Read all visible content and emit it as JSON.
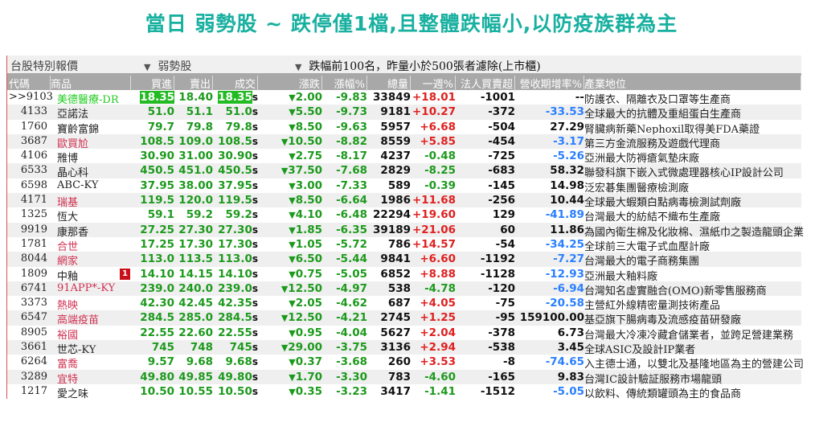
{
  "title": "當日 弱勢股 ~ 跌停僅1檔,且整體跌幅小,以防疫族群為主",
  "bar": {
    "label": "台股特別報價",
    "group": "弱勢股",
    "filter": "跌幅前100名，昨量小於500張者濾除(上市櫃)"
  },
  "headers": [
    "代碼",
    "商品",
    "買進",
    "賣出",
    "成交",
    "漲跌",
    "漲幅%",
    "總量",
    "一週%",
    "法人買賣超",
    "營收期增率%",
    "產業地位"
  ],
  "colors": {
    "down": "#1d9a1d",
    "up": "#e02020",
    "neg_revenue": "#2a7fff",
    "name_red": "#d03050"
  },
  "rows": [
    {
      "code": ">>9103",
      "name": "美德醫療-DR",
      "name_color": "green",
      "bid": "18.35",
      "ask": "18.40",
      "last": "18.35",
      "chg": "2.00",
      "pct": "-9.83",
      "vol": "33849",
      "week": "+18.01",
      "inst": "-1001",
      "rev": "--",
      "ind": "防護衣、隔離衣及口罩等生產商",
      "selected": true
    },
    {
      "code": "4133",
      "name": "亞諾法",
      "name_color": "black",
      "bid": "51.0",
      "ask": "51.1",
      "last": "51.0",
      "chg": "5.50",
      "pct": "-9.73",
      "vol": "9181",
      "week": "+10.27",
      "inst": "-372",
      "rev": "-33.53",
      "ind": "全球最大的抗體及重組蛋白生產商"
    },
    {
      "code": "1760",
      "name": "寶齡富錦",
      "name_color": "black",
      "bid": "79.7",
      "ask": "79.8",
      "last": "79.8",
      "chg": "8.50",
      "pct": "-9.63",
      "vol": "5957",
      "week": "+6.68",
      "inst": "-504",
      "rev": "27.29",
      "ind": "腎臟病新藥Nephoxil取得美FDA藥證"
    },
    {
      "code": "3687",
      "name": "歐買尬",
      "name_color": "red",
      "bid": "108.5",
      "ask": "109.0",
      "last": "108.5",
      "chg": "10.50",
      "pct": "-8.82",
      "vol": "8559",
      "week": "+5.85",
      "inst": "-454",
      "rev": "-3.17",
      "ind": "第三方金流服務及遊戲代理商"
    },
    {
      "code": "4106",
      "name": "雃博",
      "name_color": "black",
      "bid": "30.90",
      "ask": "31.00",
      "last": "30.90",
      "chg": "2.75",
      "pct": "-8.17",
      "vol": "4237",
      "week": "-0.48",
      "inst": "-725",
      "rev": "-5.26",
      "ind": "亞洲最大防褥瘡氣墊床廠"
    },
    {
      "code": "6533",
      "name": "晶心科",
      "name_color": "black",
      "bid": "450.5",
      "ask": "451.0",
      "last": "450.5",
      "chg": "37.50",
      "pct": "-7.68",
      "vol": "2829",
      "week": "-8.25",
      "inst": "-683",
      "rev": "58.32",
      "ind": "聯發科旗下嵌入式微處理器核心IP設計公司"
    },
    {
      "code": "6598",
      "name": "ABC-KY",
      "name_color": "black",
      "bid": "37.95",
      "ask": "38.00",
      "last": "37.95",
      "chg": "3.00",
      "pct": "-7.33",
      "vol": "589",
      "week": "-0.39",
      "inst": "-145",
      "rev": "14.98",
      "ind": "泛宏碁集團醫療檢測廠"
    },
    {
      "code": "4171",
      "name": "瑞基",
      "name_color": "red",
      "bid": "119.5",
      "ask": "120.0",
      "last": "119.5",
      "chg": "8.50",
      "pct": "-6.64",
      "vol": "1986",
      "week": "+11.68",
      "inst": "-256",
      "rev": "10.44",
      "ind": "全球最大蝦類白點病毒檢測試劑廠"
    },
    {
      "code": "1325",
      "name": "恆大",
      "name_color": "black",
      "bid": "59.1",
      "ask": "59.2",
      "last": "59.2",
      "chg": "4.10",
      "pct": "-6.48",
      "vol": "22294",
      "week": "+19.60",
      "inst": "129",
      "rev": "-41.89",
      "ind": "台灣最大的紡結不織布生產廠"
    },
    {
      "code": "9919",
      "name": "康那香",
      "name_color": "black",
      "bid": "27.25",
      "ask": "27.30",
      "last": "27.30",
      "chg": "1.85",
      "pct": "-6.35",
      "vol": "39189",
      "week": "+21.06",
      "inst": "60",
      "rev": "11.86",
      "ind": "為國內衛生棉及化妝棉、濕紙巾之製造龍頭企業"
    },
    {
      "code": "1781",
      "name": "合世",
      "name_color": "red",
      "bid": "17.25",
      "ask": "17.30",
      "last": "17.30",
      "chg": "1.05",
      "pct": "-5.72",
      "vol": "786",
      "week": "+14.57",
      "inst": "-54",
      "rev": "-34.25",
      "ind": "全球前三大電子式血壓計廠"
    },
    {
      "code": "8044",
      "name": "網家",
      "name_color": "red",
      "bid": "113.0",
      "ask": "113.5",
      "last": "113.0",
      "chg": "6.50",
      "pct": "-5.44",
      "vol": "9841",
      "week": "+6.60",
      "inst": "-1192",
      "rev": "-7.27",
      "ind": "台灣最大的電子商務集團"
    },
    {
      "code": "1809",
      "name": "中釉",
      "name_color": "black",
      "badge": "1",
      "bid": "14.10",
      "ask": "14.15",
      "last": "14.10",
      "chg": "0.75",
      "pct": "-5.05",
      "vol": "6852",
      "week": "+8.88",
      "inst": "-1128",
      "rev": "-12.93",
      "ind": "亞洲最大釉料廠"
    },
    {
      "code": "6741",
      "name": "91APP*-KY",
      "name_color": "red",
      "bid": "239.0",
      "ask": "240.0",
      "last": "239.0",
      "chg": "12.50",
      "pct": "-4.97",
      "vol": "538",
      "week": "-4.78",
      "inst": "-120",
      "rev": "-6.94",
      "ind": "台灣知名虛實融合(OMO)新零售服務商"
    },
    {
      "code": "3373",
      "name": "熱映",
      "name_color": "red",
      "bid": "42.30",
      "ask": "42.45",
      "last": "42.35",
      "chg": "2.05",
      "pct": "-4.62",
      "vol": "687",
      "week": "+4.05",
      "inst": "-75",
      "rev": "-20.58",
      "ind": "主營紅外線精密量測技術產品"
    },
    {
      "code": "6547",
      "name": "高端疫苗",
      "name_color": "red",
      "bid": "284.5",
      "ask": "285.0",
      "last": "284.5",
      "chg": "12.50",
      "pct": "-4.21",
      "vol": "2745",
      "week": "+1.25",
      "inst": "-95",
      "rev": "159100.00",
      "ind": "基亞旗下腸病毒及流感疫苗研發廠"
    },
    {
      "code": "8905",
      "name": "裕國",
      "name_color": "red",
      "bid": "22.55",
      "ask": "22.60",
      "last": "22.55",
      "chg": "0.95",
      "pct": "-4.04",
      "vol": "5627",
      "week": "+2.04",
      "inst": "-378",
      "rev": "6.73",
      "ind": "台灣最大冷凍冷藏倉儲業者，並跨足營建業務"
    },
    {
      "code": "3661",
      "name": "世芯-KY",
      "name_color": "black",
      "bid": "745",
      "ask": "748",
      "last": "745",
      "chg": "29.00",
      "pct": "-3.75",
      "vol": "3136",
      "week": "+2.94",
      "inst": "-538",
      "rev": "3.45",
      "ind": "全球ASIC及設計IP業者"
    },
    {
      "code": "6264",
      "name": "富喬",
      "name_color": "red",
      "bid": "9.57",
      "ask": "9.68",
      "last": "9.68",
      "chg": "0.37",
      "pct": "-3.68",
      "vol": "260",
      "week": "+3.53",
      "inst": "-8",
      "rev": "-74.65",
      "ind": "入主德士通，以雙北及基隆地區為主的營建公司"
    },
    {
      "code": "3289",
      "name": "宜特",
      "name_color": "red",
      "bid": "49.80",
      "ask": "49.85",
      "last": "49.80",
      "chg": "1.70",
      "pct": "-3.30",
      "vol": "783",
      "week": "-4.60",
      "inst": "-165",
      "rev": "9.83",
      "ind": "台灣IC設計驗証服務市場龍頭"
    },
    {
      "code": "1217",
      "name": "愛之味",
      "name_color": "black",
      "bid": "10.50",
      "ask": "10.55",
      "last": "10.50",
      "chg": "0.35",
      "pct": "-3.23",
      "vol": "3417",
      "week": "-1.41",
      "inst": "-1512",
      "rev": "-5.05",
      "ind": "以飲料、傳統類罐頭為主的食品商"
    }
  ],
  "tick_suffix": "s",
  "down_arrow": "▼",
  "dropdown_arrow": "▼"
}
